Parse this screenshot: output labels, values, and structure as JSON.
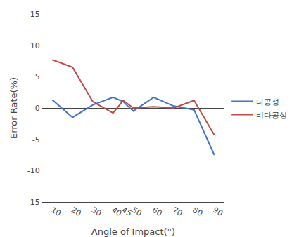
{
  "chart_data": {
    "type": "line",
    "x": [
      10,
      20,
      30,
      40,
      45,
      50,
      60,
      70,
      80,
      90
    ],
    "series": [
      {
        "name": "다공성",
        "color": "#4472C4",
        "values": [
          1.3,
          -1.5,
          0.5,
          1.7,
          1.0,
          -0.5,
          1.7,
          0.3,
          -0.3,
          -7.5
        ]
      },
      {
        "name": "비다공성",
        "color": "#BE4B48",
        "values": [
          7.7,
          6.5,
          1.0,
          -0.8,
          1.2,
          0.0,
          0.2,
          0.0,
          1.2,
          -4.3
        ]
      }
    ],
    "xlabel": "Angle of Impact(°)",
    "ylabel": "Error Rate(%)",
    "xlim": [
      5,
      95
    ],
    "xticks": [
      10,
      20,
      30,
      40,
      45,
      50,
      60,
      70,
      80,
      90
    ],
    "ylim": [
      -15,
      15
    ],
    "yticks": [
      -15,
      -10,
      -5,
      0,
      5,
      10,
      15
    ],
    "grid": false,
    "legend": "right"
  }
}
